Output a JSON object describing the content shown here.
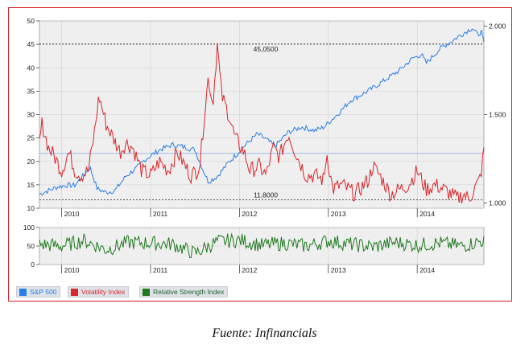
{
  "caption": "Fuente: Infinancials",
  "legend": [
    {
      "label": "S&P 500",
      "color": "#2b7de9",
      "text_color": "#2b7de9"
    },
    {
      "label": "Volatility Index",
      "color": "#d9262a",
      "text_color": "#d9262a"
    },
    {
      "label": "Relative Strength Index",
      "color": "#1f7a1f",
      "text_color": "#1f5f2a"
    }
  ],
  "colors": {
    "border": "#d71f26",
    "plot_bg": "#efefef",
    "grid": "#cfcfcf",
    "sp500": "#2b7de9",
    "vix": "#d9262a",
    "rsi": "#1f7a1f",
    "hline": "#8fb5e8"
  },
  "chart_data": [
    {
      "type": "line",
      "title": "",
      "xlabel": "",
      "x_ticks": [
        "2010",
        "2011",
        "2012",
        "2013",
        "2014"
      ],
      "x_range": [
        2009.75,
        2014.75
      ],
      "left_axis": {
        "ylim": [
          10,
          50
        ],
        "ticks": [
          "10",
          "15",
          "20",
          "25",
          "30",
          "35",
          "40",
          "45",
          "50"
        ]
      },
      "right_axis": {
        "ylim": [
          0.97,
          2.03
        ],
        "ticks": [
          "1.000",
          "1.500",
          "2.000"
        ]
      },
      "grid": true,
      "legend_position": "bottom-left",
      "reference_lines": [
        {
          "value": 45.05,
          "label": "45,0500",
          "style": "dashed",
          "axis": "left"
        },
        {
          "value": 11.8,
          "label": "11,8000",
          "style": "dashed",
          "axis": "left"
        },
        {
          "value": 21.7,
          "label": "",
          "style": "solid",
          "axis": "left"
        }
      ],
      "series": [
        {
          "name": "S&P 500",
          "axis": "right",
          "x": [
            2009.75,
            2009.85,
            2009.95,
            2010.05,
            2010.15,
            2010.25,
            2010.32,
            2010.4,
            2010.5,
            2010.6,
            2010.72,
            2010.85,
            2010.95,
            2011.1,
            2011.25,
            2011.35,
            2011.5,
            2011.58,
            2011.65,
            2011.75,
            2011.88,
            2012.05,
            2012.2,
            2012.3,
            2012.4,
            2012.55,
            2012.7,
            2012.85,
            2012.95,
            2013.1,
            2013.25,
            2013.4,
            2013.5,
            2013.65,
            2013.8,
            2013.95,
            2014.05,
            2014.1,
            2014.25,
            2014.4,
            2014.55,
            2014.62,
            2014.68,
            2014.72,
            2014.75
          ],
          "values": [
            1.05,
            1.07,
            1.09,
            1.1,
            1.1,
            1.16,
            1.2,
            1.08,
            1.06,
            1.07,
            1.15,
            1.2,
            1.25,
            1.3,
            1.33,
            1.32,
            1.3,
            1.2,
            1.12,
            1.15,
            1.23,
            1.32,
            1.39,
            1.36,
            1.32,
            1.4,
            1.43,
            1.41,
            1.43,
            1.5,
            1.58,
            1.62,
            1.65,
            1.7,
            1.75,
            1.82,
            1.84,
            1.79,
            1.87,
            1.92,
            1.97,
            1.99,
            1.95,
            1.97,
            1.9
          ]
        },
        {
          "name": "Volatility Index",
          "axis": "left",
          "x": [
            2009.75,
            2009.78,
            2009.85,
            2009.92,
            2010.0,
            2010.08,
            2010.15,
            2010.22,
            2010.3,
            2010.36,
            2010.42,
            2010.5,
            2010.58,
            2010.66,
            2010.72,
            2010.8,
            2010.9,
            2011.0,
            2011.1,
            2011.2,
            2011.3,
            2011.45,
            2011.52,
            2011.56,
            2011.6,
            2011.65,
            2011.7,
            2011.75,
            2011.8,
            2011.88,
            2011.95,
            2012.05,
            2012.12,
            2012.22,
            2012.3,
            2012.38,
            2012.45,
            2012.55,
            2012.65,
            2012.75,
            2012.85,
            2012.95,
            2012.98,
            2013.05,
            2013.15,
            2013.3,
            2013.45,
            2013.5,
            2013.58,
            2013.7,
            2013.8,
            2013.9,
            2014.0,
            2014.1,
            2014.2,
            2014.3,
            2014.38,
            2014.45,
            2014.52,
            2014.58,
            2014.64,
            2014.7,
            2014.73,
            2014.75
          ],
          "values": [
            24,
            28,
            23,
            21,
            18,
            22,
            18,
            17,
            18,
            25,
            34,
            28,
            25,
            22,
            24,
            23,
            18,
            17,
            20,
            18,
            22,
            17,
            18,
            20,
            29,
            38,
            32,
            45,
            34,
            30,
            25,
            22,
            18,
            19,
            17,
            23,
            21,
            26,
            21,
            17,
            17,
            16,
            22,
            14,
            15,
            13,
            16,
            19,
            17,
            13,
            14,
            15,
            18,
            14,
            15,
            14,
            13,
            12,
            13,
            12,
            14,
            16,
            19,
            23
          ]
        },
        {
          "name": "Relative Strength Index",
          "panel": "lower",
          "x": [
            2009.75,
            2010.0,
            2010.25,
            2010.5,
            2010.75,
            2011.0,
            2011.25,
            2011.5,
            2011.75,
            2012.0,
            2012.25,
            2012.5,
            2012.75,
            2013.0,
            2013.25,
            2013.5,
            2013.75,
            2014.0,
            2014.25,
            2014.5,
            2014.75
          ],
          "values": [
            55,
            50,
            65,
            40,
            60,
            58,
            55,
            30,
            62,
            66,
            52,
            58,
            50,
            64,
            55,
            48,
            60,
            52,
            58,
            50,
            65
          ],
          "ylim": [
            0,
            100
          ],
          "y_ticks": [
            "0",
            "50",
            "100"
          ]
        }
      ]
    }
  ]
}
